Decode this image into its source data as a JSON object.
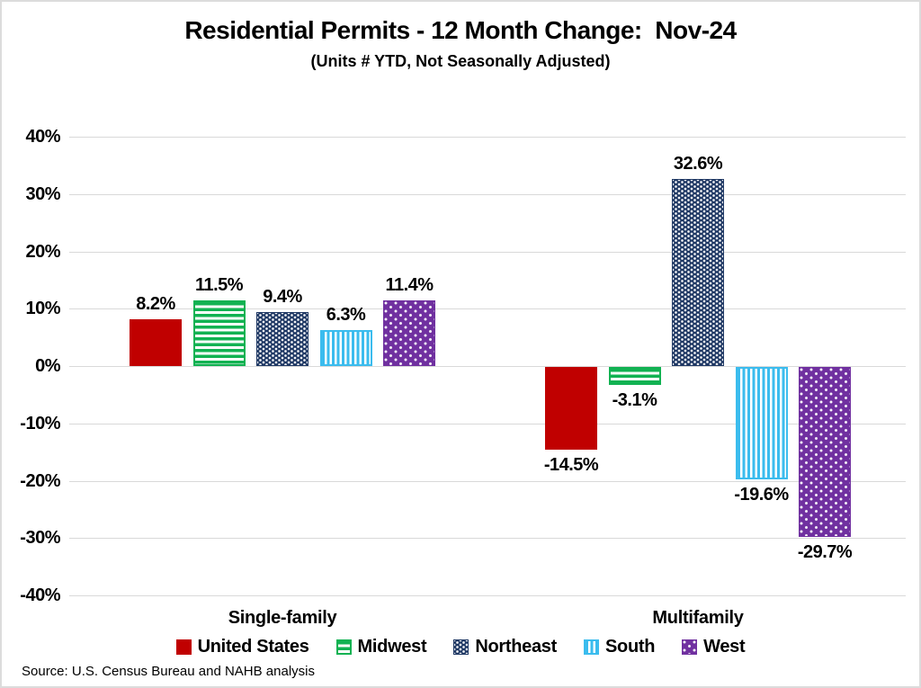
{
  "header": {
    "title": "Residential Permits - 12 Month Change:  Nov-24",
    "subtitle": "(Units # YTD, Not Seasonally Adjusted)"
  },
  "chart_data": {
    "type": "bar",
    "title": "Residential Permits - 12 Month Change:  Nov-24",
    "subtitle": "(Units # YTD, Not Seasonally Adjusted)",
    "categories": [
      "Single-family",
      "Multifamily"
    ],
    "series": [
      {
        "name": "United States",
        "pattern": "solid",
        "color": "#C00000",
        "values": [
          8.2,
          -14.5
        ],
        "labels": [
          "8.2%",
          "-14.5%"
        ]
      },
      {
        "name": "Midwest",
        "pattern": "horizontal-stripes",
        "color": "#11B252",
        "values": [
          11.5,
          -3.1
        ],
        "labels": [
          "11.5%",
          "-3.1%"
        ]
      },
      {
        "name": "Northeast",
        "pattern": "small-check",
        "color": "#1F3864",
        "values": [
          9.4,
          32.6
        ],
        "labels": [
          "9.4%",
          "32.6%"
        ]
      },
      {
        "name": "South",
        "pattern": "vertical-stripes",
        "color": "#3BBCEE",
        "values": [
          6.3,
          -19.6
        ],
        "labels": [
          "6.3%",
          "-19.6%"
        ]
      },
      {
        "name": "West",
        "pattern": "dots",
        "color": "#7030A0",
        "values": [
          11.4,
          -29.7
        ],
        "labels": [
          "11.4%",
          "-29.7%"
        ]
      }
    ],
    "y_axis": {
      "ticks": [
        "40%",
        "30%",
        "20%",
        "10%",
        "0%",
        "-10%",
        "-20%",
        "-30%",
        "-40%"
      ],
      "tick_values": [
        40,
        30,
        20,
        10,
        0,
        -10,
        -20,
        -30,
        -40
      ],
      "ylim": [
        -40,
        40
      ],
      "grid": true,
      "grid_color": "#D9D9D9"
    },
    "legend": {
      "position": "bottom",
      "entries": [
        "United States",
        "Midwest",
        "Northeast",
        "South",
        "West"
      ]
    },
    "xlabel": "",
    "ylabel": ""
  },
  "footer": {
    "source": "Source: U.S. Census Bureau and NAHB analysis"
  }
}
